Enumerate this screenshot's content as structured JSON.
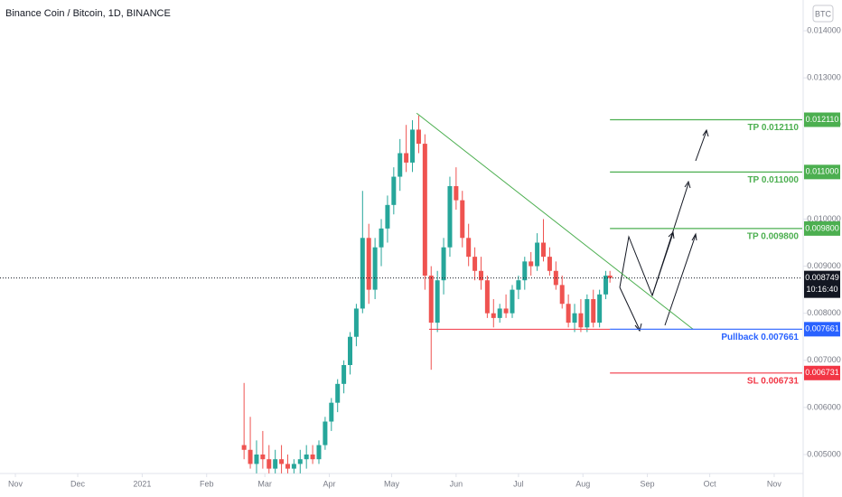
{
  "chart_data": {
    "type": "candlestick",
    "title": "Binance Coin / Bitcoin, 1D, BINANCE",
    "symbol_button": "BTC",
    "up_color": "#26a69a",
    "down_color": "#ef5350",
    "x": [
      110,
      113,
      116,
      119,
      122,
      125,
      128,
      131,
      134,
      137,
      140,
      143,
      146,
      149,
      152,
      155,
      158,
      161,
      164,
      167,
      170,
      173,
      176,
      179,
      182,
      185,
      188,
      191,
      194,
      197,
      200,
      203,
      206,
      209,
      212,
      215,
      218,
      221,
      224,
      227,
      230,
      233,
      236,
      239,
      242,
      245,
      248,
      251,
      254,
      257,
      260,
      263,
      266,
      269,
      272,
      275,
      278,
      281,
      284,
      286
    ],
    "open": [
      0.0052,
      0.0051,
      0.0048,
      0.005,
      0.0049,
      0.0047,
      0.0049,
      0.0048,
      0.0047,
      0.0048,
      0.0049,
      0.005,
      0.0049,
      0.0052,
      0.0057,
      0.0061,
      0.0065,
      0.0069,
      0.0075,
      0.0081,
      0.0096,
      0.0085,
      0.0094,
      0.0098,
      0.0103,
      0.0109,
      0.0114,
      0.0112,
      0.0119,
      0.0116,
      0.0088,
      0.0078,
      0.0087,
      0.0094,
      0.0107,
      0.0104,
      0.0096,
      0.0092,
      0.0089,
      0.0087,
      0.008,
      0.0079,
      0.0081,
      0.008,
      0.0085,
      0.0087,
      0.0091,
      0.009,
      0.0095,
      0.0092,
      0.0089,
      0.0086,
      0.0082,
      0.0078,
      0.008,
      0.0077,
      0.0083,
      0.0078,
      0.0084,
      0.0088
    ],
    "high": [
      0.00652,
      0.0058,
      0.0053,
      0.0055,
      0.0052,
      0.0051,
      0.0052,
      0.005,
      0.0049,
      0.0051,
      0.0052,
      0.0052,
      0.0053,
      0.0058,
      0.0062,
      0.0066,
      0.007,
      0.0076,
      0.0082,
      0.0106,
      0.0099,
      0.0096,
      0.01,
      0.0105,
      0.0111,
      0.0117,
      0.012,
      0.0121,
      0.0122,
      0.0118,
      0.009,
      0.0089,
      0.0096,
      0.0109,
      0.0111,
      0.0106,
      0.0099,
      0.0094,
      0.0092,
      0.0088,
      0.0083,
      0.0082,
      0.0084,
      0.0086,
      0.0088,
      0.0092,
      0.0093,
      0.0097,
      0.01,
      0.0094,
      0.0091,
      0.0088,
      0.0084,
      0.0082,
      0.0083,
      0.0084,
      0.0085,
      0.0085,
      0.0089,
      0.0089
    ],
    "low": [
      0.0049,
      0.0047,
      0.0046,
      0.0047,
      0.0046,
      0.0046,
      0.0046,
      0.0046,
      0.0046,
      0.0046,
      0.0047,
      0.0048,
      0.0048,
      0.0051,
      0.0055,
      0.0059,
      0.0063,
      0.0067,
      0.0073,
      0.008,
      0.0082,
      0.0083,
      0.009,
      0.0095,
      0.0101,
      0.0106,
      0.011,
      0.011,
      0.0114,
      0.0085,
      0.0068,
      0.0076,
      0.0084,
      0.0092,
      0.0102,
      0.0094,
      0.009,
      0.0087,
      0.0085,
      0.0079,
      0.0077,
      0.0078,
      0.0079,
      0.0079,
      0.0083,
      0.0085,
      0.0088,
      0.0089,
      0.0091,
      0.0088,
      0.0085,
      0.0081,
      0.0077,
      0.0076,
      0.0076,
      0.0076,
      0.0077,
      0.0077,
      0.0083,
      0.00865
    ],
    "close": [
      0.0051,
      0.0048,
      0.005,
      0.0049,
      0.0047,
      0.0049,
      0.0048,
      0.0047,
      0.0048,
      0.0049,
      0.005,
      0.0049,
      0.0052,
      0.0057,
      0.0061,
      0.0065,
      0.0069,
      0.0075,
      0.0081,
      0.0096,
      0.0085,
      0.0094,
      0.0098,
      0.0103,
      0.0109,
      0.0114,
      0.0112,
      0.0119,
      0.0116,
      0.0088,
      0.0078,
      0.0087,
      0.0094,
      0.0107,
      0.0104,
      0.0096,
      0.0092,
      0.0089,
      0.0087,
      0.008,
      0.0079,
      0.0081,
      0.008,
      0.0085,
      0.0087,
      0.0091,
      0.009,
      0.0095,
      0.0092,
      0.0089,
      0.0086,
      0.0082,
      0.0078,
      0.008,
      0.0077,
      0.0083,
      0.0078,
      0.0084,
      0.0088,
      0.008749
    ],
    "xlim": [
      -7.4,
      378.5
    ],
    "ylim": [
      0.004616,
      0.014653
    ],
    "xticks": [
      {
        "value": 0,
        "label": "Nov"
      },
      {
        "value": 30,
        "label": "Dec"
      },
      {
        "value": 61,
        "label": "2021"
      },
      {
        "value": 92,
        "label": "Feb"
      },
      {
        "value": 120,
        "label": "Mar"
      },
      {
        "value": 151,
        "label": "Apr"
      },
      {
        "value": 181,
        "label": "May"
      },
      {
        "value": 212,
        "label": "Jun"
      },
      {
        "value": 242,
        "label": "Jul"
      },
      {
        "value": 273,
        "label": "Aug"
      },
      {
        "value": 304,
        "label": "Sep"
      },
      {
        "value": 334,
        "label": "Oct"
      },
      {
        "value": 365,
        "label": "Nov"
      }
    ],
    "yticks": [
      {
        "value": 0.014,
        "label": "0.014000"
      },
      {
        "value": 0.013,
        "label": "0.013000"
      },
      {
        "value": 0.012,
        "label": "0.012000"
      },
      {
        "value": 0.011,
        "label": "0.011000"
      },
      {
        "value": 0.01,
        "label": "0.010000"
      },
      {
        "value": 0.009,
        "label": "0.009000"
      },
      {
        "value": 0.008,
        "label": "0.008000"
      },
      {
        "value": 0.007,
        "label": "0.007000"
      },
      {
        "value": 0.006,
        "label": "0.006000"
      },
      {
        "value": 0.005,
        "label": "0.005000"
      }
    ],
    "current_price": {
      "value": 0.008749,
      "label": "0.008749",
      "countdown": "10:16:40"
    },
    "levels": [
      {
        "value": 0.01211,
        "label": "0.012110",
        "text": "TP 0.012110",
        "color": "#4caf50"
      },
      {
        "value": 0.011,
        "label": "0.011000",
        "text": "TP 0.011000",
        "color": "#4caf50"
      },
      {
        "value": 0.0098,
        "label": "0.009800",
        "text": "TP 0.009800",
        "color": "#4caf50"
      },
      {
        "value": 0.007661,
        "label": "0.007661",
        "text": "Pullback 0.007661",
        "color": "#2962ff"
      },
      {
        "value": 0.006731,
        "label": "0.006731",
        "text": "SL 0.006731",
        "color": "#f23645"
      }
    ],
    "support": {
      "x": [
        199,
        286
      ],
      "y": [
        0.007661,
        0.007661
      ],
      "color": "#f23645"
    },
    "trendline": {
      "x": [
        193,
        326
      ],
      "y": [
        0.01225,
        0.00766
      ],
      "color": "#4caf50"
    }
  }
}
